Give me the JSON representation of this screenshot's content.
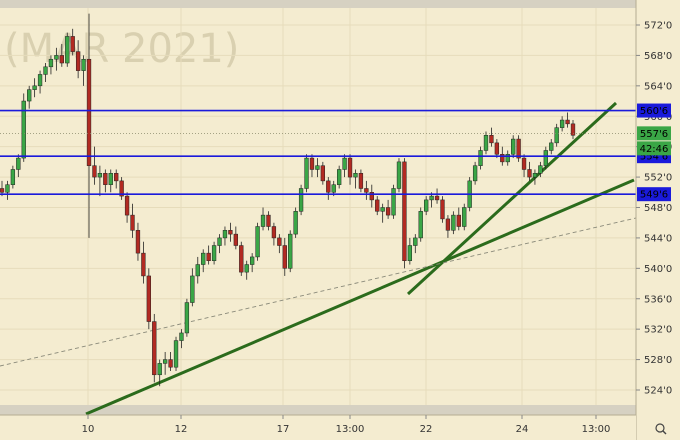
{
  "chart_data": {
    "type": "candlestick",
    "watermark": "(MAR 2021)",
    "y_axis": {
      "min": 521,
      "max": 574,
      "tick_values": [
        572,
        568,
        564,
        560,
        556,
        552,
        548,
        544,
        540,
        536,
        532,
        528,
        524
      ],
      "tick_labels": [
        "572'0",
        "568'0",
        "564'0",
        "560'0",
        "556'0",
        "552'0",
        "548'0",
        "544'0",
        "540'0",
        "536'0",
        "532'0",
        "528'0",
        "524'0"
      ]
    },
    "x_axis": {
      "tick_labels": [
        "10",
        "12",
        "17",
        "13:00",
        "22",
        "24",
        "13:00"
      ]
    },
    "horizontal_levels": [
      {
        "value": 560.75,
        "label": "560'6",
        "color": "#1a1adb"
      },
      {
        "value": 554.75,
        "label": "554'6",
        "color": "#1a1adb"
      },
      {
        "value": 549.75,
        "label": "549'6",
        "color": "#1a1adb"
      }
    ],
    "current_price": {
      "value": 557.75,
      "label": "557'6"
    },
    "countdown": "42:46",
    "trendlines": [
      {
        "color": "#2b6b1c",
        "style": "solid"
      },
      {
        "color": "#2b6b1c",
        "style": "solid"
      },
      {
        "color": "#8a8a7a",
        "style": "dashed"
      }
    ],
    "candles": [
      [
        550.5,
        551.5,
        549.5,
        550.0
      ],
      [
        550.0,
        551.5,
        549.0,
        551.0
      ],
      [
        551.0,
        553.5,
        550.5,
        553.0
      ],
      [
        553.0,
        555.0,
        552.0,
        554.5
      ],
      [
        554.5,
        563.0,
        554.0,
        562.0
      ],
      [
        562.0,
        564.0,
        561.0,
        563.5
      ],
      [
        563.5,
        565.0,
        562.5,
        564.0
      ],
      [
        564.0,
        566.0,
        563.0,
        565.5
      ],
      [
        565.5,
        567.0,
        564.5,
        566.5
      ],
      [
        566.5,
        568.0,
        565.5,
        567.5
      ],
      [
        567.5,
        569.0,
        566.0,
        568.0
      ],
      [
        568.0,
        569.5,
        566.5,
        567.0
      ],
      [
        567.0,
        571.0,
        566.5,
        570.5
      ],
      [
        570.5,
        571.5,
        568.0,
        568.5
      ],
      [
        568.5,
        570.0,
        565.0,
        566.0
      ],
      [
        566.0,
        568.0,
        564.0,
        567.5
      ],
      [
        567.5,
        573.5,
        544.0,
        553.5
      ],
      [
        553.5,
        556.0,
        551.0,
        552.0
      ],
      [
        552.0,
        553.5,
        549.5,
        552.5
      ],
      [
        552.5,
        553.0,
        550.0,
        551.0
      ],
      [
        551.0,
        553.0,
        550.0,
        552.5
      ],
      [
        552.5,
        553.0,
        550.5,
        551.5
      ],
      [
        551.5,
        552.0,
        549.0,
        549.5
      ],
      [
        549.5,
        550.0,
        546.0,
        547.0
      ],
      [
        547.0,
        548.5,
        544.0,
        545.0
      ],
      [
        545.0,
        546.0,
        541.0,
        542.0
      ],
      [
        542.0,
        543.5,
        538.0,
        539.0
      ],
      [
        539.0,
        540.0,
        532.0,
        533.0
      ],
      [
        533.0,
        534.0,
        525.0,
        526.0
      ],
      [
        526.0,
        528.0,
        524.5,
        527.5
      ],
      [
        527.5,
        529.0,
        526.0,
        528.0
      ],
      [
        528.0,
        529.0,
        526.5,
        527.0
      ],
      [
        527.0,
        531.0,
        526.5,
        530.5
      ],
      [
        530.5,
        532.0,
        529.5,
        531.5
      ],
      [
        531.5,
        536.0,
        531.0,
        535.5
      ],
      [
        535.5,
        540.0,
        535.0,
        539.0
      ],
      [
        539.0,
        541.5,
        538.0,
        540.5
      ],
      [
        540.5,
        542.5,
        539.5,
        542.0
      ],
      [
        542.0,
        543.0,
        540.5,
        541.0
      ],
      [
        541.0,
        543.5,
        540.5,
        543.0
      ],
      [
        543.0,
        544.5,
        542.0,
        544.0
      ],
      [
        544.0,
        545.5,
        543.0,
        545.0
      ],
      [
        545.0,
        546.0,
        543.5,
        544.5
      ],
      [
        544.5,
        545.5,
        542.5,
        543.0
      ],
      [
        543.0,
        543.5,
        539.0,
        539.5
      ],
      [
        539.5,
        541.0,
        538.5,
        540.5
      ],
      [
        540.5,
        542.0,
        539.5,
        541.5
      ],
      [
        541.5,
        546.0,
        541.0,
        545.5
      ],
      [
        545.5,
        548.0,
        545.0,
        547.0
      ],
      [
        547.0,
        547.5,
        545.0,
        545.5
      ],
      [
        545.5,
        546.0,
        543.0,
        544.0
      ],
      [
        544.0,
        544.5,
        542.0,
        543.0
      ],
      [
        543.0,
        544.0,
        539.0,
        540.0
      ],
      [
        540.0,
        545.0,
        539.5,
        544.5
      ],
      [
        544.5,
        548.0,
        544.0,
        547.5
      ],
      [
        547.5,
        551.0,
        547.0,
        550.5
      ],
      [
        550.5,
        555.0,
        550.0,
        554.5
      ],
      [
        554.5,
        555.0,
        552.0,
        553.0
      ],
      [
        553.0,
        554.5,
        552.0,
        553.5
      ],
      [
        553.5,
        554.0,
        551.0,
        551.5
      ],
      [
        551.5,
        552.0,
        549.0,
        550.0
      ],
      [
        550.0,
        551.5,
        549.5,
        551.0
      ],
      [
        551.0,
        553.5,
        550.5,
        553.0
      ],
      [
        553.0,
        555.0,
        552.0,
        554.5
      ],
      [
        554.5,
        555.0,
        551.0,
        552.0
      ],
      [
        552.0,
        553.0,
        550.5,
        552.5
      ],
      [
        552.5,
        553.0,
        550.0,
        550.5
      ],
      [
        550.5,
        551.5,
        549.0,
        550.0
      ],
      [
        550.0,
        551.0,
        548.0,
        549.0
      ],
      [
        549.0,
        549.5,
        547.0,
        547.5
      ],
      [
        547.5,
        548.5,
        546.0,
        548.0
      ],
      [
        548.0,
        549.0,
        546.5,
        547.0
      ],
      [
        547.0,
        551.0,
        546.5,
        550.5
      ],
      [
        550.5,
        554.5,
        550.0,
        554.0
      ],
      [
        554.0,
        554.5,
        540.0,
        541.0
      ],
      [
        541.0,
        544.0,
        540.5,
        543.0
      ],
      [
        543.0,
        544.5,
        542.0,
        544.0
      ],
      [
        544.0,
        548.0,
        543.5,
        547.5
      ],
      [
        547.5,
        549.5,
        547.0,
        549.0
      ],
      [
        549.0,
        550.0,
        548.0,
        549.5
      ],
      [
        549.5,
        550.5,
        548.5,
        549.0
      ],
      [
        549.0,
        549.5,
        546.0,
        546.5
      ],
      [
        546.5,
        547.0,
        544.0,
        545.0
      ],
      [
        545.0,
        547.5,
        544.5,
        547.0
      ],
      [
        547.0,
        548.0,
        545.0,
        545.5
      ],
      [
        545.5,
        548.5,
        545.0,
        548.0
      ],
      [
        548.0,
        552.0,
        547.5,
        551.5
      ],
      [
        551.5,
        554.0,
        551.0,
        553.5
      ],
      [
        553.5,
        556.0,
        553.0,
        555.5
      ],
      [
        555.5,
        558.0,
        555.0,
        557.5
      ],
      [
        557.5,
        558.5,
        556.0,
        556.5
      ],
      [
        556.5,
        557.0,
        554.5,
        555.0
      ],
      [
        555.0,
        556.0,
        553.5,
        554.0
      ],
      [
        554.0,
        555.5,
        553.5,
        555.0
      ],
      [
        555.0,
        557.5,
        554.5,
        557.0
      ],
      [
        557.0,
        557.5,
        554.0,
        554.5
      ],
      [
        554.5,
        555.0,
        552.0,
        553.0
      ],
      [
        553.0,
        554.0,
        551.5,
        552.0
      ],
      [
        552.0,
        553.0,
        551.0,
        552.5
      ],
      [
        552.5,
        554.0,
        552.0,
        553.5
      ],
      [
        553.5,
        556.0,
        553.0,
        555.5
      ],
      [
        555.5,
        557.0,
        555.0,
        556.5
      ],
      [
        556.5,
        559.0,
        556.0,
        558.5
      ],
      [
        558.5,
        560.0,
        558.0,
        559.5
      ],
      [
        559.5,
        560.5,
        558.5,
        559.0
      ],
      [
        559.0,
        559.5,
        557.0,
        557.5
      ]
    ]
  }
}
